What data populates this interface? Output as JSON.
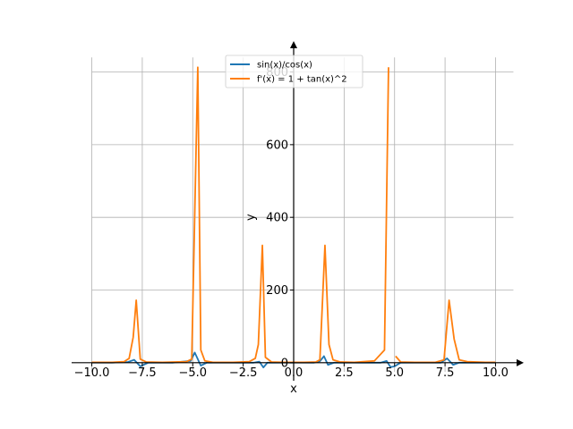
{
  "chart_data": {
    "type": "line",
    "xlabel": "x",
    "ylabel": "y",
    "xlim": [
      -11.0,
      11.0
    ],
    "ylim": [
      -25,
      880
    ],
    "grid": true,
    "legend_position": "top-center",
    "x_ticks": [
      -10.0,
      -7.5,
      -5.0,
      -2.5,
      0.0,
      2.5,
      5.0,
      7.5,
      10.0
    ],
    "x_tick_labels": [
      "−10.0",
      "−7.5",
      "−5.0",
      "−2.5",
      "0.0",
      "2.5",
      "5.0",
      "7.5",
      "10.0"
    ],
    "y_ticks": [
      0,
      200,
      400,
      600,
      800
    ],
    "y_tick_labels": [
      "0",
      "200",
      "400",
      "600",
      "800"
    ],
    "series": [
      {
        "name": "sin(x)/cos(x)",
        "color": "#1f77b4",
        "x": [
          -10.0,
          -9.0,
          -8.2,
          -7.9,
          -7.6,
          -7.2,
          -6.0,
          -5.1,
          -4.9,
          -4.6,
          -4.3,
          -3.0,
          -2.0,
          -1.7,
          -1.5,
          -1.3,
          -1.0,
          0.0,
          1.0,
          1.3,
          1.5,
          1.7,
          2.0,
          3.0,
          4.3,
          4.6,
          4.8,
          5.0,
          5.3,
          6.5,
          7.3,
          7.6,
          7.9,
          8.2,
          8.6,
          10.0
        ],
        "y": [
          0,
          0,
          2,
          8,
          -10,
          0,
          0,
          5,
          28,
          -8,
          0,
          0,
          0,
          3,
          -13,
          0,
          0,
          0,
          0,
          4,
          18,
          -6,
          0,
          0,
          0,
          5,
          -12,
          -10,
          0,
          0,
          0,
          12,
          -6,
          0,
          0,
          0
        ]
      },
      {
        "name": "f'(x) = 1 + tan(x)^2",
        "color": "#ff7f0e",
        "x": [
          -10.0,
          -9.0,
          -8.4,
          -8.15,
          -7.95,
          -7.8,
          -7.6,
          -7.3,
          -6.5,
          -5.3,
          -5.05,
          -4.75,
          -4.6,
          -4.4,
          -4.0,
          -3.0,
          -2.2,
          -1.9,
          -1.75,
          -1.55,
          -1.4,
          -1.1,
          -0.5,
          0.0,
          0.5,
          1.1,
          1.3,
          1.55,
          1.75,
          1.95,
          2.3,
          3.0,
          4.0,
          4.5,
          4.7,
          4.95,
          5.05,
          5.3,
          6.0,
          7.0,
          7.45,
          7.7,
          7.95,
          8.2,
          8.6,
          9.5,
          10.0
        ],
        "y": [
          1,
          1,
          3,
          12,
          70,
          172,
          10,
          2,
          1,
          3,
          10,
          813,
          35,
          5,
          1,
          1,
          3,
          12,
          50,
          323,
          15,
          2,
          1,
          1,
          1,
          2,
          8,
          323,
          50,
          8,
          2,
          1,
          5,
          35,
          813,
          null,
          18,
          2,
          1,
          1,
          8,
          172,
          65,
          8,
          3,
          1,
          1
        ]
      }
    ]
  }
}
